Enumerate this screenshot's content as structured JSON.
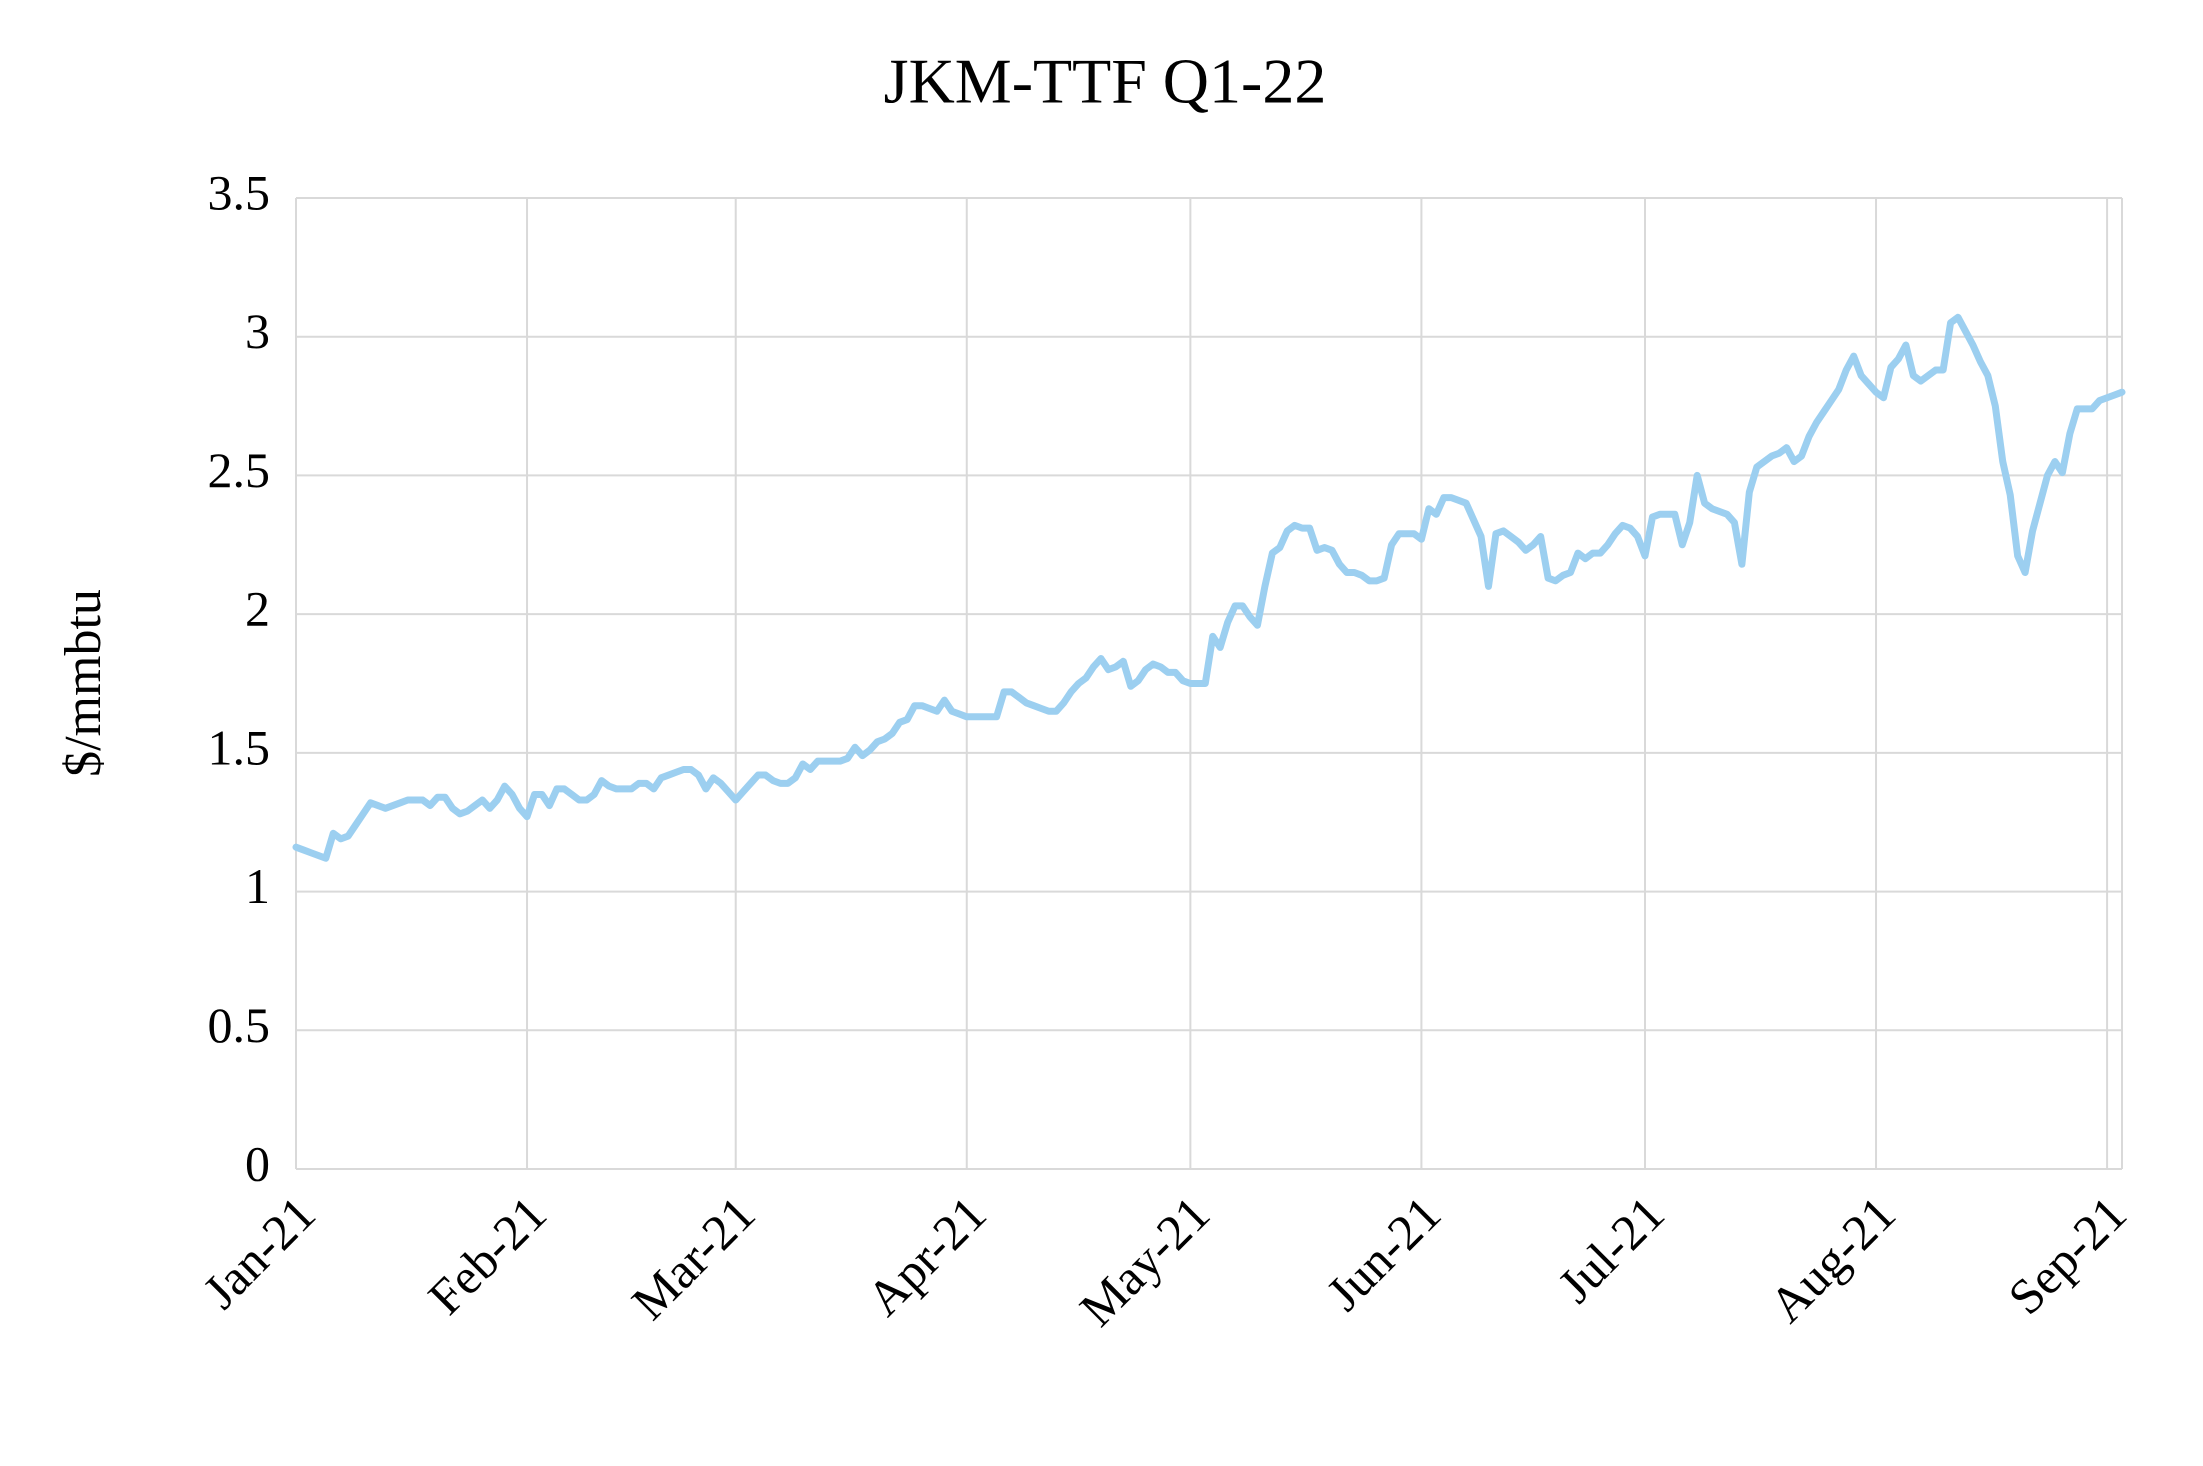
{
  "chart_data": {
    "type": "line",
    "title": "JKM-TTF Q1-22",
    "y_label": "$/mmbtu",
    "categories": [
      "Jan-21",
      null,
      null,
      null,
      null,
      null,
      null,
      null,
      null,
      null,
      null,
      null,
      null,
      null,
      null,
      null,
      null,
      null,
      null,
      null,
      null,
      null,
      null,
      null,
      null,
      null,
      null,
      null,
      null,
      null,
      null,
      "Feb-21",
      null,
      null,
      null,
      null,
      null,
      null,
      null,
      null,
      null,
      null,
      null,
      null,
      null,
      null,
      null,
      null,
      null,
      null,
      null,
      null,
      null,
      null,
      null,
      null,
      null,
      null,
      null,
      "Mar-21",
      null,
      null,
      null,
      null,
      null,
      null,
      null,
      null,
      null,
      null,
      null,
      null,
      null,
      null,
      null,
      null,
      null,
      null,
      null,
      null,
      null,
      null,
      null,
      null,
      null,
      null,
      null,
      null,
      null,
      null,
      "Apr-21",
      null,
      null,
      null,
      null,
      null,
      null,
      null,
      null,
      null,
      null,
      null,
      null,
      null,
      null,
      null,
      null,
      null,
      null,
      null,
      null,
      null,
      null,
      null,
      null,
      null,
      null,
      null,
      null,
      null,
      "May-21",
      null,
      null,
      null,
      null,
      null,
      null,
      null,
      null,
      null,
      null,
      null,
      null,
      null,
      null,
      null,
      null,
      null,
      null,
      null,
      null,
      null,
      null,
      null,
      null,
      null,
      null,
      null,
      null,
      null,
      null,
      "Jun-21",
      null,
      null,
      null,
      null,
      null,
      null,
      null,
      null,
      null,
      null,
      null,
      null,
      null,
      null,
      null,
      null,
      null,
      null,
      null,
      null,
      null,
      null,
      null,
      null,
      null,
      null,
      null,
      null,
      null,
      "Jul-21",
      null,
      null,
      null,
      null,
      null,
      null,
      null,
      null,
      null,
      null,
      null,
      null,
      null,
      null,
      null,
      null,
      null,
      null,
      null,
      null,
      null,
      null,
      null,
      null,
      null,
      null,
      null,
      null,
      null,
      null,
      "Aug-21",
      null,
      null,
      null,
      null,
      null,
      null,
      null,
      null,
      null,
      null,
      null,
      null,
      null,
      null,
      null,
      null,
      null,
      null,
      null,
      null,
      null,
      null,
      null,
      null,
      null,
      null,
      null,
      null,
      null,
      null,
      "Sep-21",
      null,
      null
    ],
    "values": [
      1.16,
      1.15,
      1.14,
      1.13,
      1.12,
      1.21,
      1.19,
      1.2,
      1.24,
      1.28,
      1.32,
      1.31,
      1.3,
      1.31,
      1.32,
      1.33,
      1.33,
      1.33,
      1.31,
      1.34,
      1.34,
      1.3,
      1.28,
      1.29,
      1.31,
      1.33,
      1.3,
      1.33,
      1.38,
      1.35,
      1.3,
      1.27,
      1.35,
      1.35,
      1.31,
      1.37,
      1.37,
      1.35,
      1.33,
      1.33,
      1.35,
      1.4,
      1.38,
      1.37,
      1.37,
      1.37,
      1.39,
      1.39,
      1.37,
      1.41,
      1.42,
      1.43,
      1.44,
      1.44,
      1.42,
      1.37,
      1.41,
      1.39,
      1.36,
      1.33,
      1.36,
      1.39,
      1.42,
      1.42,
      1.4,
      1.39,
      1.39,
      1.41,
      1.46,
      1.44,
      1.47,
      1.47,
      1.47,
      1.47,
      1.48,
      1.52,
      1.49,
      1.51,
      1.54,
      1.55,
      1.57,
      1.61,
      1.62,
      1.67,
      1.67,
      1.66,
      1.65,
      1.69,
      1.65,
      1.64,
      1.63,
      1.63,
      1.63,
      1.63,
      1.63,
      1.72,
      1.72,
      1.7,
      1.68,
      1.67,
      1.66,
      1.65,
      1.65,
      1.68,
      1.72,
      1.75,
      1.77,
      1.81,
      1.84,
      1.8,
      1.81,
      1.83,
      1.74,
      1.76,
      1.8,
      1.82,
      1.81,
      1.79,
      1.79,
      1.76,
      1.75,
      1.75,
      1.75,
      1.92,
      1.88,
      1.97,
      2.03,
      2.03,
      1.99,
      1.96,
      2.1,
      2.22,
      2.24,
      2.3,
      2.32,
      2.31,
      2.31,
      2.23,
      2.24,
      2.23,
      2.18,
      2.15,
      2.15,
      2.14,
      2.12,
      2.12,
      2.13,
      2.25,
      2.29,
      2.29,
      2.29,
      2.27,
      2.38,
      2.36,
      2.42,
      2.42,
      2.41,
      2.4,
      2.34,
      2.28,
      2.1,
      2.29,
      2.3,
      2.28,
      2.26,
      2.23,
      2.25,
      2.28,
      2.13,
      2.12,
      2.14,
      2.15,
      2.22,
      2.2,
      2.22,
      2.22,
      2.25,
      2.29,
      2.32,
      2.31,
      2.28,
      2.21,
      2.35,
      2.36,
      2.36,
      2.36,
      2.25,
      2.33,
      2.5,
      2.4,
      2.38,
      2.37,
      2.36,
      2.33,
      2.18,
      2.44,
      2.53,
      2.55,
      2.57,
      2.58,
      2.6,
      2.55,
      2.57,
      2.64,
      2.69,
      2.73,
      2.77,
      2.81,
      2.88,
      2.93,
      2.86,
      2.83,
      2.8,
      2.78,
      2.89,
      2.92,
      2.97,
      2.86,
      2.84,
      2.86,
      2.88,
      2.88,
      3.05,
      3.07,
      3.02,
      2.97,
      2.91,
      2.86,
      2.75,
      2.55,
      2.43,
      2.21,
      2.15,
      2.3,
      2.4,
      2.5,
      2.55,
      2.51,
      2.65,
      2.74,
      2.74,
      2.74,
      2.77,
      2.78,
      2.79,
      2.8
    ],
    "color": "#9ccff0",
    "ylim": [
      0,
      3.5
    ],
    "yticks": [
      0,
      0.5,
      1,
      1.5,
      2,
      2.5,
      3,
      3.5
    ],
    "grid": true
  }
}
